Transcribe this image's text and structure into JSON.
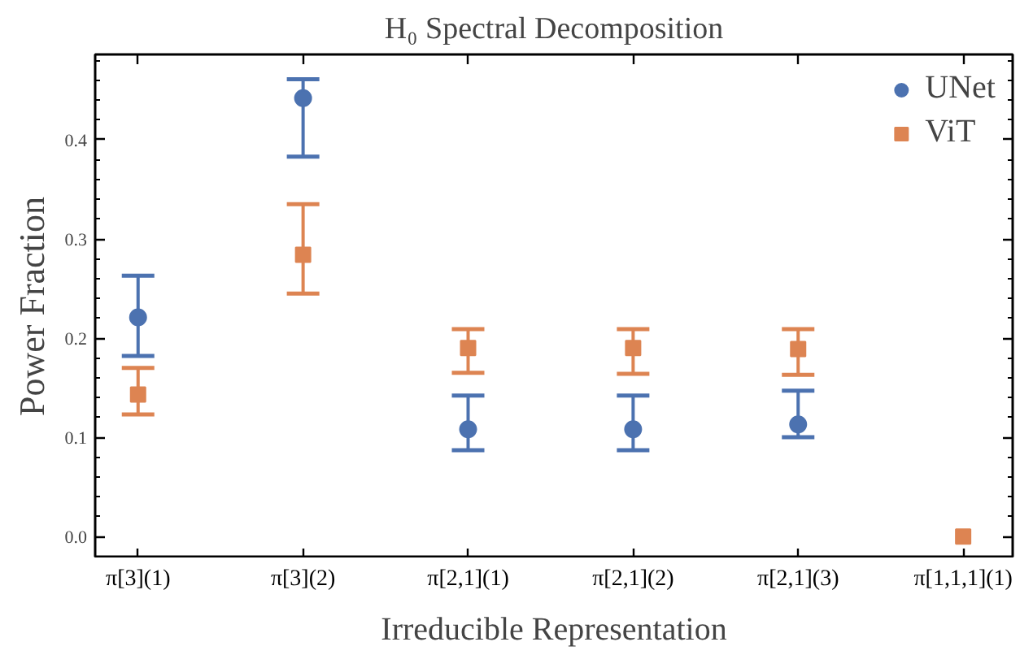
{
  "chart_data": {
    "type": "scatter",
    "title": "H₀ Spectral Decomposition",
    "xlabel": "Irreducible Representation",
    "ylabel": "Power Fraction",
    "categories": [
      "π[3](1)",
      "π[3](2)",
      "π[2,1](1)",
      "π[2,1](2)",
      "π[2,1](3)",
      "π[1,1,1](1)"
    ],
    "series": [
      {
        "name": "UNet",
        "color": "#4c72b0",
        "marker": "circle",
        "values": [
          0.221,
          0.442,
          0.108,
          0.108,
          0.113,
          null
        ],
        "errors": [
          [
            0.182,
            0.263
          ],
          [
            0.383,
            0.461
          ],
          [
            0.087,
            0.142
          ],
          [
            0.087,
            0.142
          ],
          [
            0.1,
            0.147
          ],
          null
        ]
      },
      {
        "name": "ViT",
        "color": "#dd8452",
        "marker": "square",
        "values": [
          0.143,
          0.284,
          0.19,
          0.19,
          0.189,
          0.0
        ],
        "errors": [
          [
            0.123,
            0.17
          ],
          [
            0.245,
            0.335
          ],
          [
            0.165,
            0.209
          ],
          [
            0.164,
            0.209
          ],
          [
            0.163,
            0.209
          ],
          [
            0.0,
            0.0
          ]
        ]
      }
    ],
    "ylim": [
      -0.022,
      0.486
    ],
    "yticks": [
      {
        "value": 0.0,
        "label": "0.0"
      },
      {
        "value": 0.1,
        "label": "0.1"
      },
      {
        "value": 0.2,
        "label": "0.2"
      },
      {
        "value": 0.3,
        "label": "0.3"
      },
      {
        "value": 0.4,
        "label": "0.4"
      },
      {
        "value": -0.02,
        "label": null
      },
      {
        "value": 0.02,
        "label": null
      },
      {
        "value": 0.04,
        "label": null
      },
      {
        "value": 0.06,
        "label": null
      },
      {
        "value": 0.08,
        "label": null
      },
      {
        "value": 0.12,
        "label": null
      },
      {
        "value": 0.14,
        "label": null
      },
      {
        "value": 0.16,
        "label": null
      },
      {
        "value": 0.18,
        "label": null
      },
      {
        "value": 0.22,
        "label": null
      },
      {
        "value": 0.24,
        "label": null
      },
      {
        "value": 0.26,
        "label": null
      },
      {
        "value": 0.28,
        "label": null
      },
      {
        "value": 0.32,
        "label": null
      },
      {
        "value": 0.34,
        "label": null
      },
      {
        "value": 0.36,
        "label": null
      },
      {
        "value": 0.38,
        "label": null
      },
      {
        "value": 0.42,
        "label": null
      },
      {
        "value": 0.44,
        "label": null
      },
      {
        "value": 0.46,
        "label": null
      },
      {
        "value": 0.48,
        "label": null
      }
    ],
    "legend": "top right",
    "grid": false
  }
}
